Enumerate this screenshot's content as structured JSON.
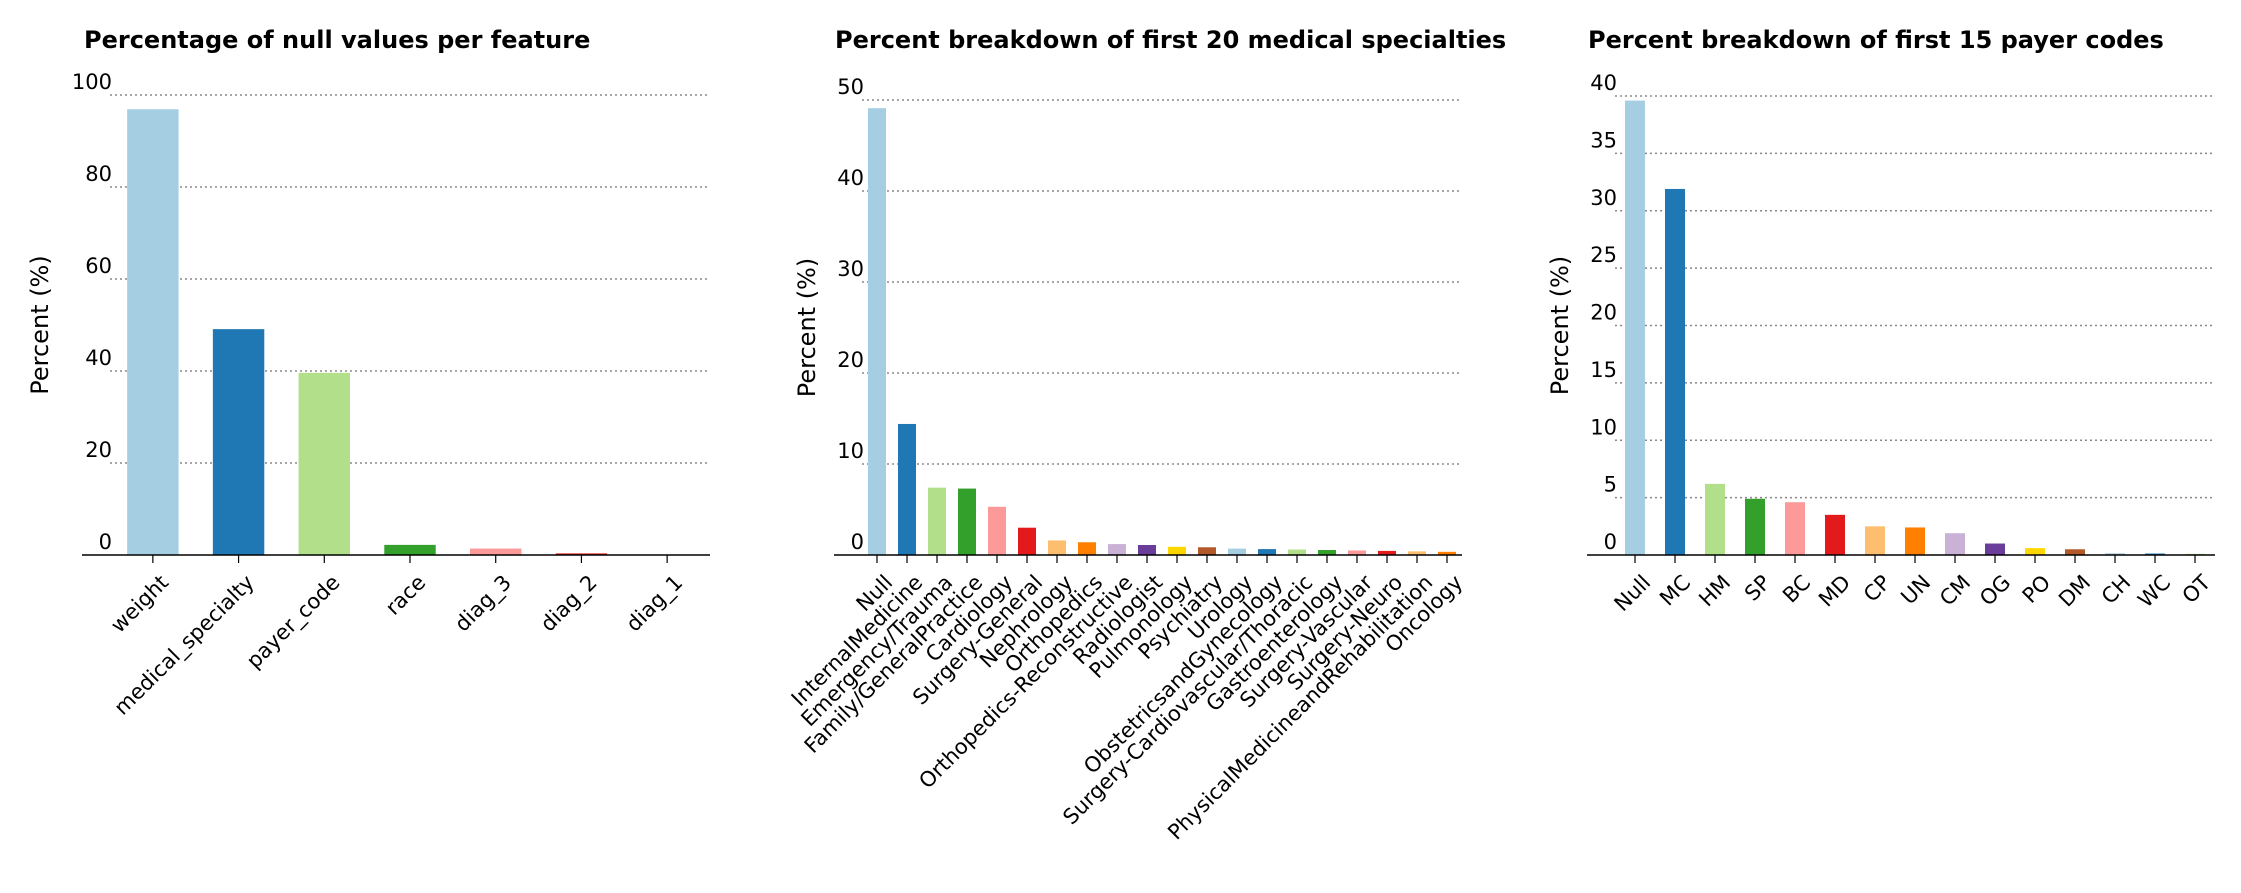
{
  "figure": {
    "background": "#ffffff"
  },
  "chart_data": [
    {
      "type": "bar",
      "title": "Percentage of null values per feature",
      "xlabel": "",
      "ylabel": "Percent (%)",
      "ylim": [
        0,
        100
      ],
      "yticks": [
        0,
        20,
        40,
        60,
        80,
        100
      ],
      "grid": true,
      "categories": [
        "weight",
        "medical_specialty",
        "payer_code",
        "race",
        "diag_3",
        "diag_2",
        "diag_1"
      ],
      "values": [
        96.9,
        49.1,
        39.6,
        2.2,
        1.4,
        0.35,
        0.02
      ],
      "colors": [
        "#a6cee3",
        "#1f78b4",
        "#b2df8a",
        "#33a02c",
        "#fb9a99",
        "#e31a1c",
        "#fdbf6f"
      ]
    },
    {
      "type": "bar",
      "title": "Percent breakdown of first 20 medical specialties",
      "xlabel": "",
      "ylabel": "Percent (%)",
      "ylim": [
        0,
        50
      ],
      "yticks": [
        0,
        10,
        20,
        30,
        40,
        50
      ],
      "grid": true,
      "categories": [
        "Null",
        "InternalMedicine",
        "Emergency/Trauma",
        "Family/GeneralPractice",
        "Cardiology",
        "Surgery-General",
        "Nephrology",
        "Orthopedics",
        "Orthopedics-Reconstructive",
        "Radiologist",
        "Pulmonology",
        "Psychiatry",
        "Urology",
        "ObstetricsandGynecology",
        "Surgery-Cardiovascular/Thoracic",
        "Gastroenterology",
        "Surgery-Vascular",
        "Surgery-Neuro",
        "PhysicalMedicineandRehabilitation",
        "Oncology"
      ],
      "values": [
        49.1,
        14.4,
        7.4,
        7.3,
        5.3,
        3.0,
        1.6,
        1.4,
        1.2,
        1.1,
        0.9,
        0.85,
        0.7,
        0.65,
        0.6,
        0.55,
        0.5,
        0.45,
        0.4,
        0.35
      ],
      "colors": [
        "#a6cee3",
        "#1f78b4",
        "#b2df8a",
        "#33a02c",
        "#fb9a99",
        "#e31a1c",
        "#fdbf6f",
        "#ff7f00",
        "#cab2d6",
        "#6a3d9a",
        "#ffd700",
        "#b15928",
        "#a6cee3",
        "#1f78b4",
        "#b2df8a",
        "#33a02c",
        "#fb9a99",
        "#e31a1c",
        "#fdbf6f",
        "#ff7f00"
      ]
    },
    {
      "type": "bar",
      "title": "Percent breakdown of first 15 payer codes",
      "xlabel": "",
      "ylabel": "Percent (%)",
      "ylim": [
        0,
        40
      ],
      "yticks": [
        0,
        5,
        10,
        15,
        20,
        25,
        30,
        35,
        40
      ],
      "grid": true,
      "categories": [
        "Null",
        "MC",
        "HM",
        "SP",
        "BC",
        "MD",
        "CP",
        "UN",
        "CM",
        "OG",
        "PO",
        "DM",
        "CH",
        "WC",
        "OT"
      ],
      "values": [
        39.6,
        31.9,
        6.2,
        4.9,
        4.6,
        3.5,
        2.5,
        2.4,
        1.9,
        1.0,
        0.6,
        0.5,
        0.15,
        0.13,
        0.1
      ],
      "colors": [
        "#a6cee3",
        "#1f78b4",
        "#b2df8a",
        "#33a02c",
        "#fb9a99",
        "#e31a1c",
        "#fdbf6f",
        "#ff7f00",
        "#cab2d6",
        "#6a3d9a",
        "#ffd700",
        "#b15928",
        "#a6cee3",
        "#1f78b4",
        "#b2df8a"
      ]
    }
  ]
}
